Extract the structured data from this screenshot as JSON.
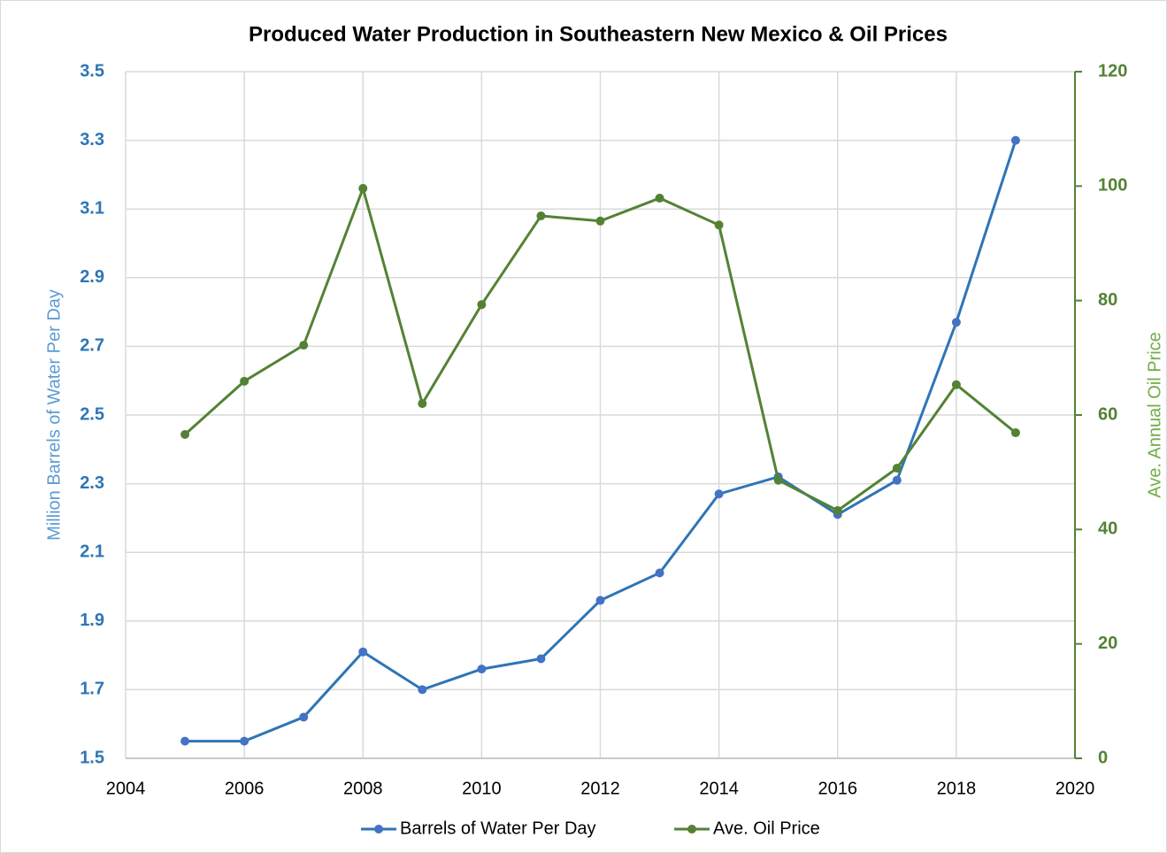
{
  "chart_data": {
    "type": "line",
    "title": "Produced Water Production in Southeastern New Mexico & Oil Prices",
    "ylabel": "Million Barrels of Water Per Day",
    "y2label": "Ave. Annual Oil Price",
    "x": [
      2005,
      2006,
      2007,
      2008,
      2009,
      2010,
      2011,
      2012,
      2013,
      2014,
      2015,
      2016,
      2017,
      2018,
      2019
    ],
    "xlim": [
      2004,
      2020
    ],
    "xticks": [
      2004,
      2006,
      2008,
      2010,
      2012,
      2014,
      2016,
      2018,
      2020
    ],
    "ylim": [
      1.5,
      3.5
    ],
    "yticks": [
      1.5,
      1.7,
      1.9,
      2.1,
      2.3,
      2.5,
      2.7,
      2.9,
      3.1,
      3.3,
      3.5
    ],
    "y2lim": [
      0,
      120
    ],
    "y2ticks": [
      0,
      20,
      40,
      60,
      80,
      100,
      120
    ],
    "grid": true,
    "legend": "bottom",
    "series": [
      {
        "name": "Barrels of Water Per Day",
        "color": "#2e75b6",
        "marker_color": "#4472c4",
        "values": [
          1.55,
          1.55,
          1.62,
          1.81,
          1.7,
          1.76,
          1.79,
          1.96,
          2.04,
          2.27,
          2.32,
          2.21,
          2.31,
          2.77,
          3.3
        ]
      },
      {
        "name": "Ave. Oil Price",
        "color": "#548235",
        "marker_color": "#548235",
        "axis": "y2",
        "values": [
          56.6,
          65.9,
          72.2,
          99.6,
          62.0,
          79.3,
          94.8,
          93.9,
          97.9,
          93.2,
          48.6,
          43.3,
          50.7,
          65.3,
          56.9
        ]
      }
    ]
  }
}
